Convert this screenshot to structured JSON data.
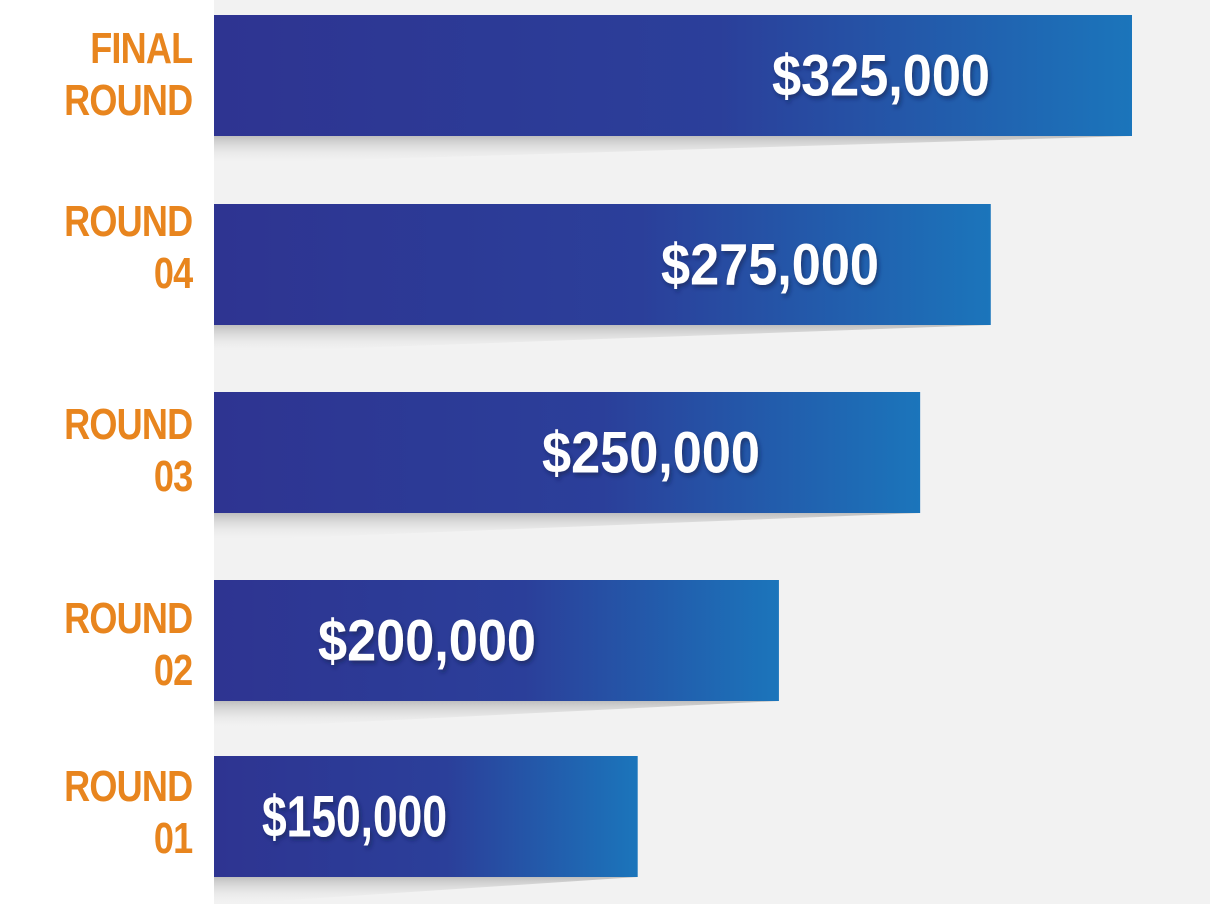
{
  "chart_data": {
    "type": "bar",
    "orientation": "horizontal",
    "categories": [
      [
        "FINAL",
        "ROUND"
      ],
      [
        "ROUND",
        "04"
      ],
      [
        "ROUND",
        "03"
      ],
      [
        "ROUND",
        "02"
      ],
      [
        "ROUND",
        "01"
      ]
    ],
    "values": [
      325000,
      275000,
      250000,
      200000,
      150000
    ],
    "value_labels": [
      "$325,000",
      "$275,000",
      "$250,000",
      "$200,000",
      "$150,000"
    ],
    "title": "",
    "xlabel": "",
    "ylabel": "",
    "grid": false,
    "legend": "none"
  },
  "colors": {
    "category_label": "#e8851e",
    "bar_dark": "#2e3491",
    "bar_light": "#1b75bb",
    "value_text": "#ffffff",
    "plot_background": "#f2f2f2"
  }
}
